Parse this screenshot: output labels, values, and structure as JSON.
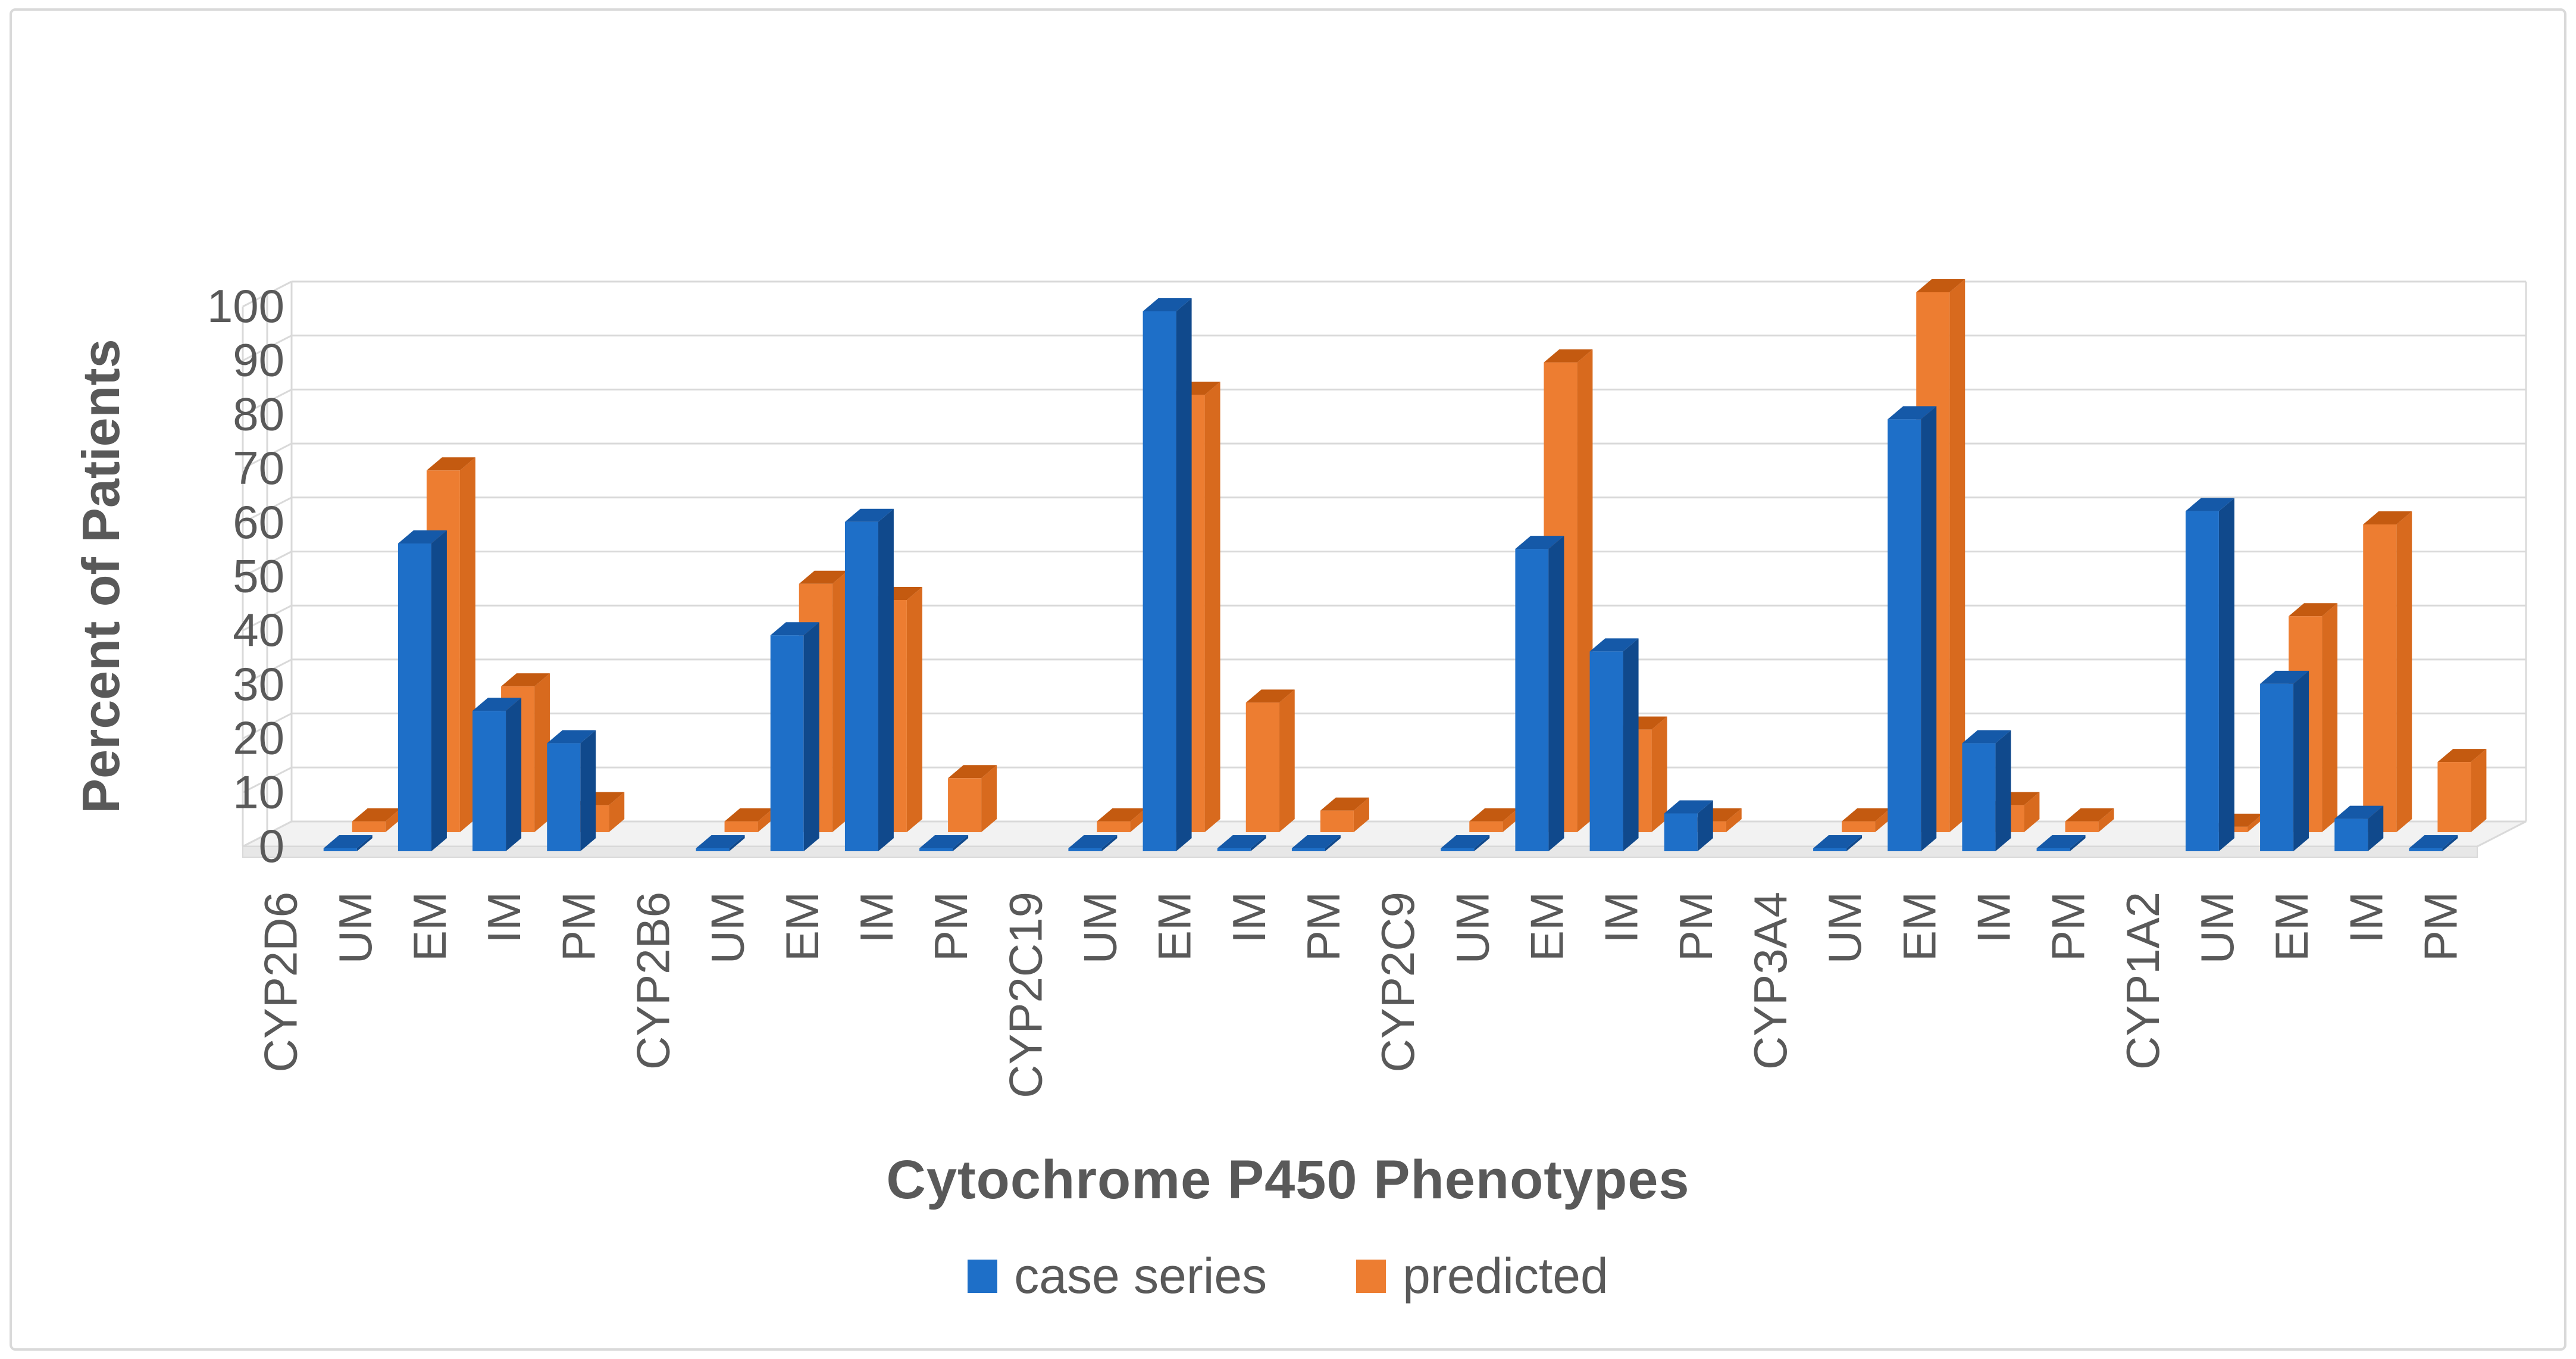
{
  "figure": {
    "kind": "3d-clustered-column-chart",
    "background": "#ffffff",
    "border_color": "#d9d9d9"
  },
  "chart_data": {
    "type": "bar",
    "style": "3d-clustered-column",
    "title": "",
    "xlabel": "Cytochrome P450 Phenotypes",
    "ylabel": "Percent of Patients",
    "ylim": [
      0,
      100
    ],
    "ytick_step": 10,
    "yticks": [
      0,
      10,
      20,
      30,
      40,
      50,
      60,
      70,
      80,
      90,
      100
    ],
    "grid": true,
    "legend_position": "bottom",
    "groups": [
      "CYP2D6",
      "CYP2B6",
      "CYP2C19",
      "CYP2C9",
      "CYP3A4",
      "CYP1A2"
    ],
    "phenotypes": [
      "UM",
      "EM",
      "IM",
      "PM"
    ],
    "series": [
      {
        "name": "case series",
        "color": "#1E6FC8",
        "values": {
          "CYP2D6": [
            0,
            57,
            26,
            20
          ],
          "CYP2B6": [
            0,
            40,
            61,
            0
          ],
          "CYP2C19": [
            0,
            100,
            0,
            0
          ],
          "CYP2C9": [
            0,
            56,
            37,
            7
          ],
          "CYP3A4": [
            0,
            80,
            20,
            0
          ],
          "CYP1A2": [
            63,
            31,
            6,
            0
          ]
        }
      },
      {
        "name": "predicted",
        "color": "#ED7D31",
        "values": {
          "CYP2D6": [
            2,
            67,
            27,
            5
          ],
          "CYP2B6": [
            2,
            46,
            43,
            10
          ],
          "CYP2C19": [
            2,
            81,
            24,
            4
          ],
          "CYP2C9": [
            2,
            87,
            19,
            2
          ],
          "CYP3A4": [
            2,
            100,
            5,
            2
          ],
          "CYP1A2": [
            1,
            40,
            57,
            13
          ]
        }
      }
    ],
    "colors": {
      "case_front": "#1E6FC8",
      "case_top": "#1559A8",
      "case_side": "#10498C",
      "predicted_front": "#ED7D31",
      "predicted_top": "#C45A10",
      "predicted_side": "#D86A1E",
      "gridline": "#D9D9D9",
      "floor": "#F2F2F2",
      "floor_edge": "#E7E7E7",
      "text": "#595959"
    }
  },
  "legend": {
    "items": [
      {
        "label": "case series",
        "color": "#1E6FC8"
      },
      {
        "label": "predicted",
        "color": "#ED7D31"
      }
    ]
  }
}
